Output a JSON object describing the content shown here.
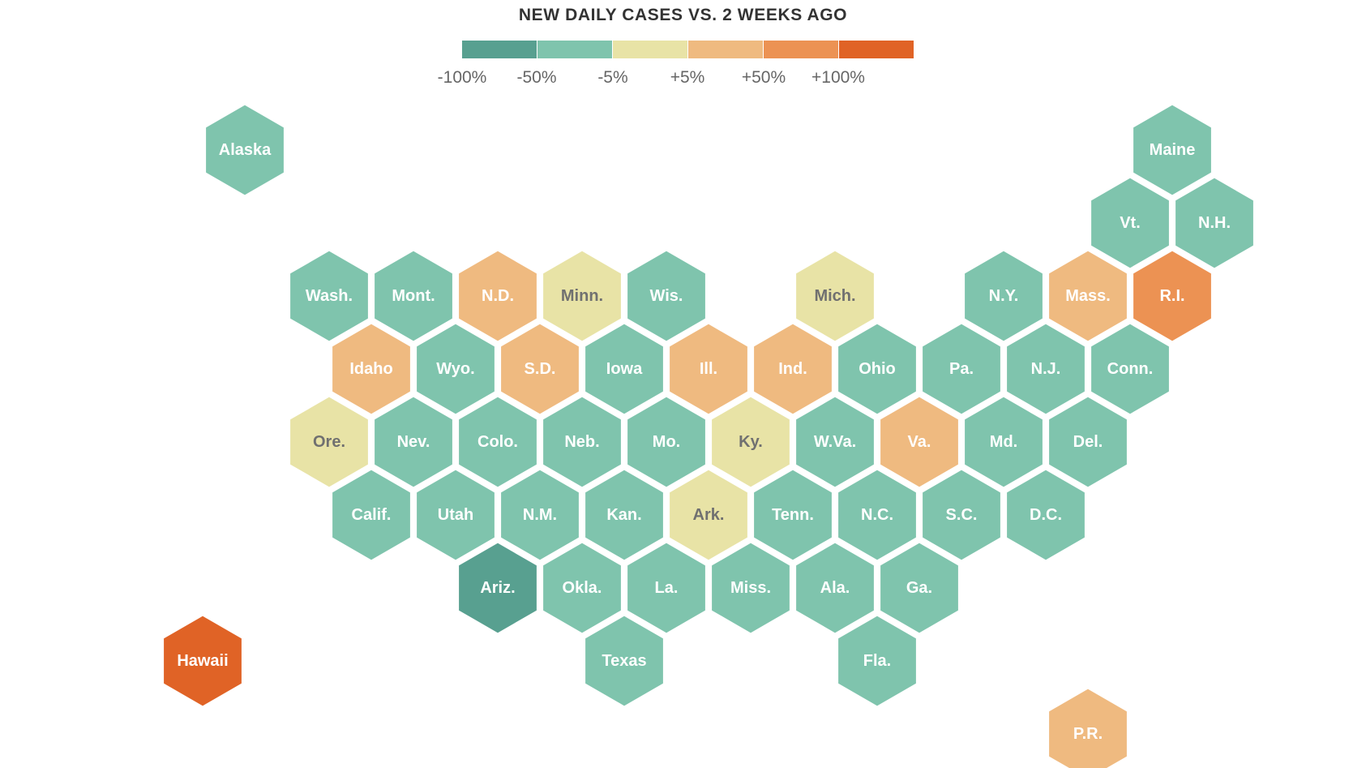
{
  "title": "NEW DAILY CASES VS. 2 WEEKS AGO",
  "legend": {
    "colors": [
      "#58a090",
      "#7fc4ad",
      "#e8e3a6",
      "#efba80",
      "#ec9253",
      "#e06326"
    ],
    "ticks": [
      "-100%",
      "-50%",
      "-5%",
      "+5%",
      "+50%",
      "+100%"
    ]
  },
  "categories": {
    "strong-decrease": "#58a090",
    "decrease": "#7fc4ad",
    "flat": "#e8e3a6",
    "increase": "#efba80",
    "larger-increase": "#ec9253",
    "strong-increase": "#e06326"
  },
  "label_colors": {
    "dark_bg": "#ffffff",
    "flat_bg": "#707070"
  },
  "chart_data": {
    "type": "hex-tile-map",
    "title": "NEW DAILY CASES VS. 2 WEEKS AGO",
    "legend_bins": [
      "-100%",
      "-50%",
      "-5%",
      "+5%",
      "+50%",
      "+100%"
    ],
    "states": [
      {
        "label": "Alaska",
        "row": 0,
        "col": 0,
        "category": "decrease"
      },
      {
        "label": "Maine",
        "row": 0,
        "col": 11,
        "category": "decrease"
      },
      {
        "label": "Vt.",
        "row": 1,
        "col": 10,
        "category": "decrease"
      },
      {
        "label": "N.H.",
        "row": 1,
        "col": 11,
        "category": "decrease"
      },
      {
        "label": "Wash.",
        "row": 2,
        "col": 1,
        "category": "decrease"
      },
      {
        "label": "Mont.",
        "row": 2,
        "col": 2,
        "category": "decrease"
      },
      {
        "label": "N.D.",
        "row": 2,
        "col": 3,
        "category": "increase"
      },
      {
        "label": "Minn.",
        "row": 2,
        "col": 4,
        "category": "flat"
      },
      {
        "label": "Wis.",
        "row": 2,
        "col": 5,
        "category": "decrease"
      },
      {
        "label": "Mich.",
        "row": 2,
        "col": 7,
        "category": "flat"
      },
      {
        "label": "N.Y.",
        "row": 2,
        "col": 9,
        "category": "decrease"
      },
      {
        "label": "Mass.",
        "row": 2,
        "col": 10,
        "category": "increase"
      },
      {
        "label": "R.I.",
        "row": 2,
        "col": 11,
        "category": "larger-increase"
      },
      {
        "label": "Idaho",
        "row": 3,
        "col": 1,
        "category": "increase"
      },
      {
        "label": "Wyo.",
        "row": 3,
        "col": 2,
        "category": "decrease"
      },
      {
        "label": "S.D.",
        "row": 3,
        "col": 3,
        "category": "increase"
      },
      {
        "label": "Iowa",
        "row": 3,
        "col": 4,
        "category": "decrease"
      },
      {
        "label": "Ill.",
        "row": 3,
        "col": 5,
        "category": "increase"
      },
      {
        "label": "Ind.",
        "row": 3,
        "col": 6,
        "category": "increase"
      },
      {
        "label": "Ohio",
        "row": 3,
        "col": 7,
        "category": "decrease"
      },
      {
        "label": "Pa.",
        "row": 3,
        "col": 8,
        "category": "decrease"
      },
      {
        "label": "N.J.",
        "row": 3,
        "col": 9,
        "category": "decrease"
      },
      {
        "label": "Conn.",
        "row": 3,
        "col": 10,
        "category": "decrease"
      },
      {
        "label": "Ore.",
        "row": 4,
        "col": 1,
        "category": "flat"
      },
      {
        "label": "Nev.",
        "row": 4,
        "col": 2,
        "category": "decrease"
      },
      {
        "label": "Colo.",
        "row": 4,
        "col": 3,
        "category": "decrease"
      },
      {
        "label": "Neb.",
        "row": 4,
        "col": 4,
        "category": "decrease"
      },
      {
        "label": "Mo.",
        "row": 4,
        "col": 5,
        "category": "decrease"
      },
      {
        "label": "Ky.",
        "row": 4,
        "col": 6,
        "category": "flat"
      },
      {
        "label": "W.Va.",
        "row": 4,
        "col": 7,
        "category": "decrease"
      },
      {
        "label": "Va.",
        "row": 4,
        "col": 8,
        "category": "increase"
      },
      {
        "label": "Md.",
        "row": 4,
        "col": 9,
        "category": "decrease"
      },
      {
        "label": "Del.",
        "row": 4,
        "col": 10,
        "category": "decrease"
      },
      {
        "label": "Calif.",
        "row": 5,
        "col": 1,
        "category": "decrease"
      },
      {
        "label": "Utah",
        "row": 5,
        "col": 2,
        "category": "decrease"
      },
      {
        "label": "N.M.",
        "row": 5,
        "col": 3,
        "category": "decrease"
      },
      {
        "label": "Kan.",
        "row": 5,
        "col": 4,
        "category": "decrease"
      },
      {
        "label": "Ark.",
        "row": 5,
        "col": 5,
        "category": "flat"
      },
      {
        "label": "Tenn.",
        "row": 5,
        "col": 6,
        "category": "decrease"
      },
      {
        "label": "N.C.",
        "row": 5,
        "col": 7,
        "category": "decrease"
      },
      {
        "label": "S.C.",
        "row": 5,
        "col": 8,
        "category": "decrease"
      },
      {
        "label": "D.C.",
        "row": 5,
        "col": 9,
        "category": "decrease"
      },
      {
        "label": "Ariz.",
        "row": 6,
        "col": 3,
        "category": "strong-decrease"
      },
      {
        "label": "Okla.",
        "row": 6,
        "col": 4,
        "category": "decrease"
      },
      {
        "label": "La.",
        "row": 6,
        "col": 5,
        "category": "decrease"
      },
      {
        "label": "Miss.",
        "row": 6,
        "col": 6,
        "category": "decrease"
      },
      {
        "label": "Ala.",
        "row": 6,
        "col": 7,
        "category": "decrease"
      },
      {
        "label": "Ga.",
        "row": 6,
        "col": 8,
        "category": "decrease"
      },
      {
        "label": "Hawaii",
        "row": 7,
        "col": 0,
        "category": "strong-increase"
      },
      {
        "label": "Texas",
        "row": 7,
        "col": 4,
        "category": "decrease"
      },
      {
        "label": "Fla.",
        "row": 7,
        "col": 7,
        "category": "decrease"
      },
      {
        "label": "P.R.",
        "row": 8,
        "col": 10,
        "category": "increase"
      }
    ]
  }
}
